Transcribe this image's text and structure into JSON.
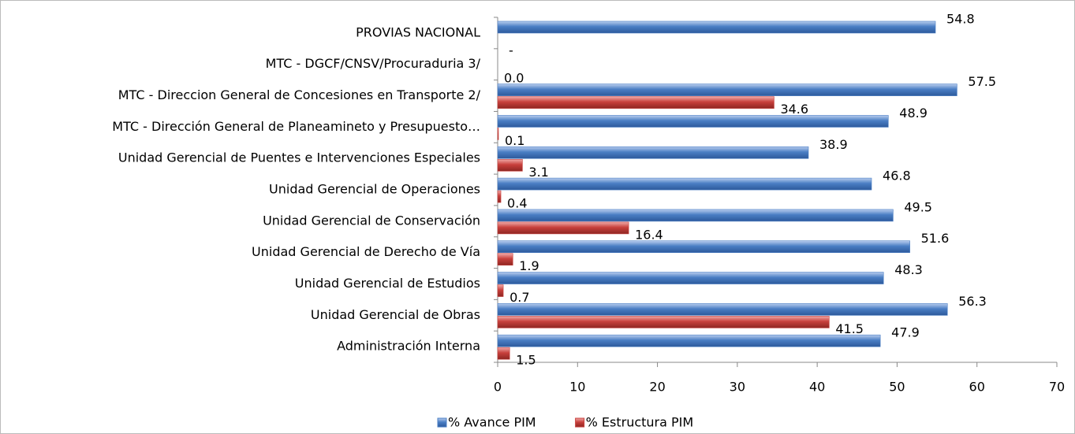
{
  "chart_data": {
    "type": "hbar",
    "categories": [
      "PROVIAS NACIONAL",
      "MTC - DGCF/CNSV/Procuraduria  3/",
      "MTC - Direccion General de Concesiones en Transporte 2/",
      "MTC - Dirección General de Planeamineto y Presupuesto…",
      "Unidad Gerencial de Puentes e Intervenciones Especiales",
      "Unidad Gerencial de Operaciones",
      "Unidad Gerencial de Conservación",
      "Unidad Gerencial de Derecho de Vía",
      "Unidad Gerencial de Estudios",
      "Unidad Gerencial de Obras",
      "Administración Interna"
    ],
    "series": [
      {
        "name": "% Avance PIM",
        "color": "#4a7ec4",
        "values": [
          54.8,
          0,
          57.5,
          48.9,
          38.9,
          46.8,
          49.5,
          51.6,
          48.3,
          56.3,
          47.9
        ],
        "value_labels": [
          "54.8",
          "-",
          "57.5",
          "48.9",
          "38.9",
          "46.8",
          "49.5",
          "51.6",
          "48.3",
          "56.3",
          "47.9"
        ]
      },
      {
        "name": "% Estructura PIM",
        "color": "#c8403c",
        "values": [
          null,
          0,
          34.6,
          0.1,
          3.1,
          0.4,
          16.4,
          1.9,
          0.7,
          41.5,
          1.5
        ],
        "value_labels": [
          null,
          "0.0",
          "34.6",
          "0.1",
          "3.1",
          "0.4",
          "16.4",
          "1.9",
          "0.7",
          "41.5",
          "1.5"
        ]
      }
    ],
    "xlim": [
      0,
      70
    ],
    "xticks": [
      0,
      10,
      20,
      30,
      40,
      50,
      60,
      70
    ]
  }
}
